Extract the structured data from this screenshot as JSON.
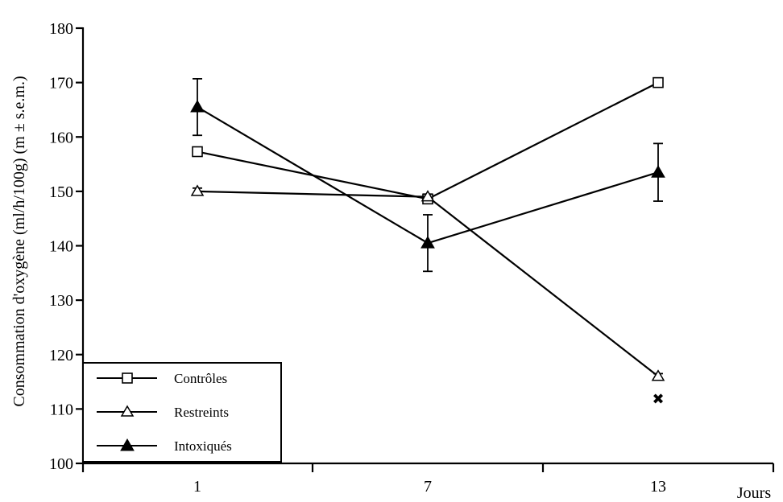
{
  "chart_data": {
    "type": "line",
    "x_categories": [
      "1",
      "7",
      "13"
    ],
    "xlabel": "Jours",
    "ylabel": "Consommation d'oxygène (ml/h/100g) (m ± s.e.m.)",
    "ylim": [
      100,
      180
    ],
    "yticks": [
      "100",
      "110",
      "120",
      "130",
      "140",
      "150",
      "160",
      "170",
      "180"
    ],
    "grid": false,
    "legend_position": "bottom-left",
    "series": [
      {
        "name": "Contrôles",
        "marker": "open-square",
        "values": [
          157.3,
          148.6,
          170.0
        ],
        "errors": [
          0.8,
          0.6,
          0.6
        ]
      },
      {
        "name": "Restreints",
        "marker": "open-triangle",
        "values": [
          150.0,
          149.0,
          116.0
        ],
        "errors": [
          0.6,
          0.5,
          0.5
        ]
      },
      {
        "name": "Intoxiqués",
        "marker": "filled-triangle",
        "values": [
          165.5,
          140.5,
          153.5
        ],
        "errors": [
          5.2,
          5.2,
          5.3
        ]
      }
    ],
    "annotations": [
      {
        "text": "✖",
        "x": "13",
        "y": 112,
        "meaning": "significance marker"
      }
    ]
  }
}
